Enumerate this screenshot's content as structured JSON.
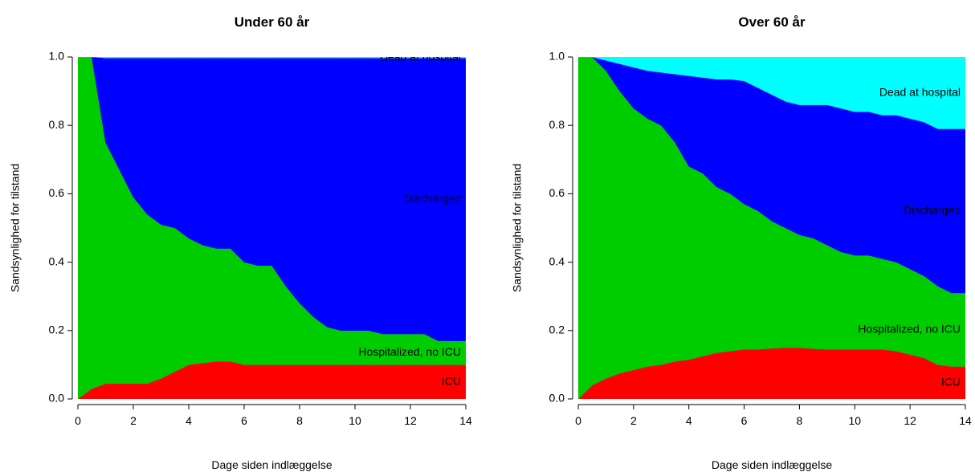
{
  "chart_data": [
    {
      "type": "area",
      "title": "Under 60 år",
      "xlabel": "Dage siden indlæggelse",
      "ylabel": "Sandsynlighed for tilstand",
      "x": [
        0,
        0.5,
        1,
        1.5,
        2,
        2.5,
        3,
        3.5,
        4,
        4.5,
        5,
        5.5,
        6,
        6.5,
        7,
        7.5,
        8,
        8.5,
        9,
        9.5,
        10,
        10.5,
        11,
        11.5,
        12,
        12.5,
        13,
        13.5,
        14
      ],
      "series": [
        {
          "name": "ICU",
          "color": "#ff0000",
          "values": [
            0,
            0.03,
            0.045,
            0.045,
            0.045,
            0.045,
            0.06,
            0.08,
            0.1,
            0.105,
            0.11,
            0.11,
            0.1,
            0.1,
            0.1,
            0.1,
            0.1,
            0.1,
            0.1,
            0.1,
            0.1,
            0.1,
            0.1,
            0.1,
            0.1,
            0.1,
            0.1,
            0.1,
            0.1
          ]
        },
        {
          "name": "Hospitalized, no ICU",
          "color": "#00cd00",
          "values": [
            1,
            0.97,
            0.705,
            0.625,
            0.545,
            0.495,
            0.45,
            0.42,
            0.37,
            0.345,
            0.33,
            0.33,
            0.3,
            0.29,
            0.29,
            0.23,
            0.18,
            0.14,
            0.11,
            0.1,
            0.1,
            0.1,
            0.09,
            0.09,
            0.09,
            0.09,
            0.07,
            0.07,
            0.07
          ]
        },
        {
          "name": "Discharged",
          "color": "#0000ff",
          "values": [
            0,
            0,
            0.247,
            0.327,
            0.407,
            0.457,
            0.487,
            0.497,
            0.527,
            0.547,
            0.557,
            0.557,
            0.597,
            0.607,
            0.607,
            0.667,
            0.717,
            0.757,
            0.787,
            0.797,
            0.797,
            0.797,
            0.807,
            0.807,
            0.807,
            0.807,
            0.827,
            0.827,
            0.827
          ]
        },
        {
          "name": "Dead at hospital",
          "color": "#00ffff",
          "values": [
            0,
            0,
            0.003,
            0.003,
            0.003,
            0.003,
            0.003,
            0.003,
            0.003,
            0.003,
            0.003,
            0.003,
            0.003,
            0.003,
            0.003,
            0.003,
            0.003,
            0.003,
            0.003,
            0.003,
            0.003,
            0.003,
            0.003,
            0.003,
            0.003,
            0.003,
            0.003,
            0.003,
            0.003
          ]
        }
      ],
      "xlim": [
        0,
        14
      ],
      "ylim": [
        0,
        1
      ],
      "xticks": [
        0,
        2,
        4,
        6,
        8,
        10,
        12,
        14
      ],
      "yticks": [
        {
          "value": 0,
          "label": "0.0"
        },
        0.2,
        0.4,
        0.6,
        0.8,
        {
          "value": 1,
          "label": "1.0"
        }
      ]
    },
    {
      "type": "area",
      "title": "Over 60 år",
      "xlabel": "Dage siden indlæggelse",
      "ylabel": "Sandsynlighed for tilstand",
      "x": [
        0,
        0.5,
        1,
        1.5,
        2,
        2.5,
        3,
        3.5,
        4,
        4.5,
        5,
        5.5,
        6,
        6.5,
        7,
        7.5,
        8,
        8.5,
        9,
        9.5,
        10,
        10.5,
        11,
        11.5,
        12,
        12.5,
        13,
        13.5,
        14
      ],
      "series": [
        {
          "name": "ICU",
          "color": "#ff0000",
          "values": [
            0,
            0.04,
            0.06,
            0.075,
            0.085,
            0.095,
            0.1,
            0.11,
            0.115,
            0.125,
            0.135,
            0.14,
            0.145,
            0.145,
            0.148,
            0.15,
            0.15,
            0.147,
            0.145,
            0.145,
            0.145,
            0.145,
            0.145,
            0.14,
            0.13,
            0.12,
            0.1,
            0.095,
            0.095
          ]
        },
        {
          "name": "Hospitalized, no ICU",
          "color": "#00cd00",
          "values": [
            1,
            0.96,
            0.9,
            0.825,
            0.765,
            0.725,
            0.7,
            0.64,
            0.565,
            0.535,
            0.485,
            0.46,
            0.425,
            0.405,
            0.372,
            0.35,
            0.33,
            0.323,
            0.305,
            0.285,
            0.275,
            0.275,
            0.265,
            0.26,
            0.25,
            0.24,
            0.23,
            0.215,
            0.215
          ]
        },
        {
          "name": "Discharged",
          "color": "#0000ff",
          "values": [
            0,
            0,
            0.03,
            0.08,
            0.12,
            0.14,
            0.155,
            0.2,
            0.265,
            0.28,
            0.315,
            0.335,
            0.36,
            0.36,
            0.37,
            0.37,
            0.38,
            0.39,
            0.41,
            0.42,
            0.42,
            0.42,
            0.42,
            0.43,
            0.44,
            0.45,
            0.46,
            0.48,
            0.48
          ]
        },
        {
          "name": "Dead at hospital",
          "color": "#00ffff",
          "values": [
            0,
            0,
            0.01,
            0.02,
            0.03,
            0.04,
            0.045,
            0.05,
            0.055,
            0.06,
            0.065,
            0.065,
            0.07,
            0.09,
            0.11,
            0.13,
            0.14,
            0.14,
            0.14,
            0.15,
            0.16,
            0.16,
            0.17,
            0.17,
            0.18,
            0.19,
            0.21,
            0.21,
            0.21
          ]
        }
      ],
      "xlim": [
        0,
        14
      ],
      "ylim": [
        0,
        1
      ],
      "xticks": [
        0,
        2,
        4,
        6,
        8,
        10,
        12,
        14
      ],
      "yticks": [
        {
          "value": 0,
          "label": "0.0"
        },
        0.2,
        0.4,
        0.6,
        0.8,
        {
          "value": 1,
          "label": "1.0"
        }
      ]
    }
  ]
}
